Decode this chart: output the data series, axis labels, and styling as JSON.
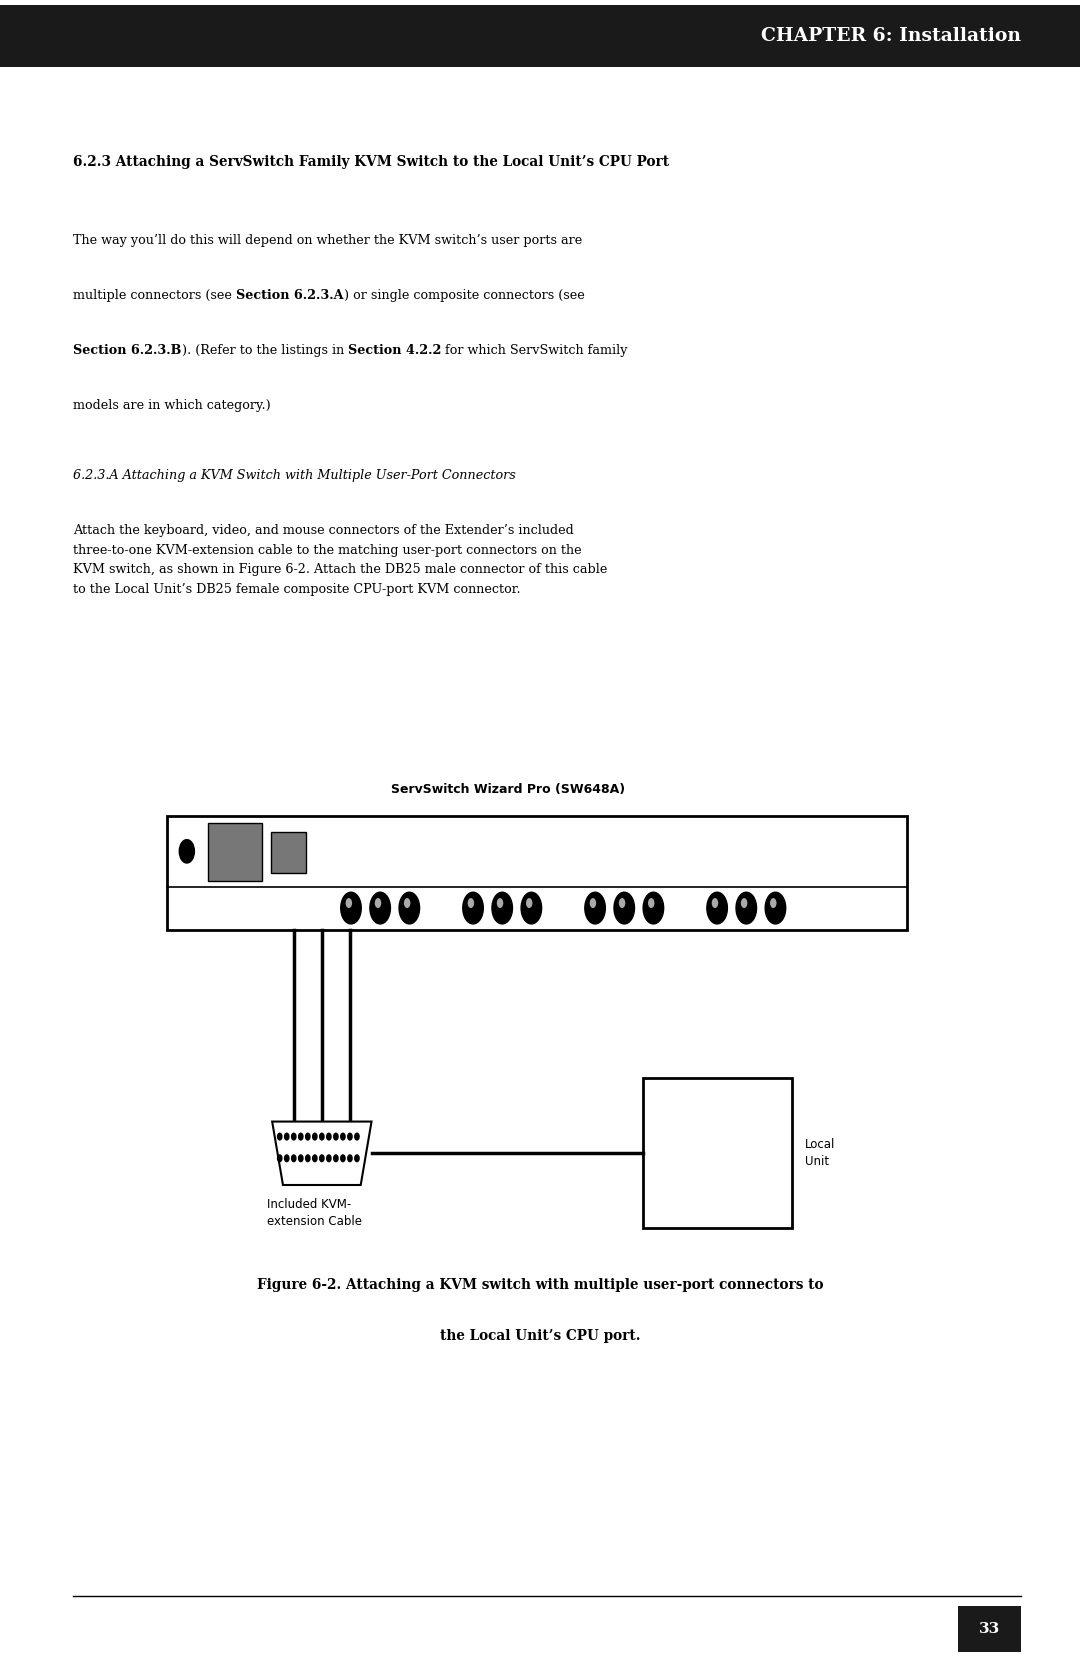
{
  "page_width": 10.8,
  "page_height": 16.69,
  "bg_color": "#ffffff",
  "header_bg": "#1a1a1a",
  "header_text": "CHAPTER 6: Installation",
  "header_text_color": "#ffffff",
  "section_heading": "6.2.3 Attaching a ServSwitch Family KVM Switch to the Local Unit’s CPU Port",
  "subsection_heading": "6.2.3.A Attaching a KVM Switch with Multiple User-Port Connectors",
  "body_para1_line1": "The way you’ll do this will depend on whether the KVM switch’s user ports are",
  "body_para1_line2a": "multiple connectors (see ",
  "body_para1_bold1": "Section 6.2.3.A",
  "body_para1_line2b": ") or single composite connectors (see",
  "body_para1_bold2": "Section 6.2.3.B",
  "body_para1_line3a": "). (Refer to the listings in ",
  "body_para1_bold3": "Section 4.2.2",
  "body_para1_line3b": " for which ServSwitch family",
  "body_para1_line4": "models are in which category.)",
  "body_para2": "Attach the keyboard, video, and mouse connectors of the Extender’s included\nthree-to-one KVM-extension cable to the matching user-port connectors on the\nKVM switch, as shown in Figure 6-2. Attach the DB25 male connector of this cable\nto the Local Unit’s DB25 female composite CPU-port KVM connector.",
  "diagram_title": "ServSwitch Wizard Pro (SW648A)",
  "label_cable": "Included KVM-\nextension Cable",
  "label_local": "Local\nUnit",
  "figure_caption_line1": "Figure 6-2. Attaching a KVM switch with multiple user-port connectors to",
  "figure_caption_line2": "the Local Unit’s CPU port.",
  "page_number": "33",
  "text_color": "#000000"
}
